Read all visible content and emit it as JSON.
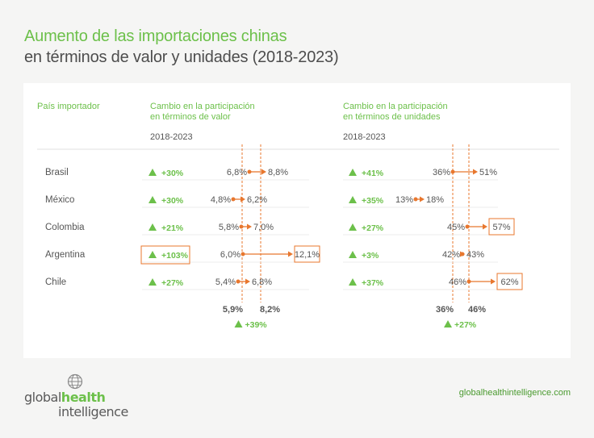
{
  "title_line1": "Aumento de las importaciones chinas",
  "title_line2": "en términos de valor y unidades (2018-2023)",
  "website": "globalhealthintelligence.com",
  "logo": {
    "part1": "global",
    "part2": "health",
    "part3": "intelligence",
    "icon": "globe-icon"
  },
  "colors": {
    "green": "#6cc04a",
    "orange": "#e8772e",
    "text": "#555555",
    "line": "#e0e0e0"
  },
  "chart_data": {
    "type": "table",
    "country_header": "País importador",
    "columns": [
      {
        "key": "value",
        "header_lines": [
          "Cambio en la participación",
          "en términos de valor"
        ],
        "period": "2018-2023",
        "ref_2018": 5.9,
        "ref_2023": 8.2,
        "ref_2018_label": "5,9%",
        "ref_2023_label": "8,2%",
        "total_change": "+39%"
      },
      {
        "key": "units",
        "header_lines": [
          "Cambio en la participación",
          "en términos de unidades"
        ],
        "period": "2018-2023",
        "ref_2018": 36,
        "ref_2023": 46,
        "ref_2018_label": "36%",
        "ref_2023_label": "46%",
        "total_change": "+27%"
      }
    ],
    "rows": [
      {
        "country": "Brasil",
        "value": {
          "change": "+30%",
          "v2018": 6.8,
          "v2023": 8.8,
          "l2018": "6,8%",
          "l2023": "8,8%",
          "highlight": false
        },
        "units": {
          "change": "+41%",
          "v2018": 36,
          "v2023": 51,
          "l2018": "36%",
          "l2023": "51%",
          "highlight": false
        }
      },
      {
        "country": "México",
        "value": {
          "change": "+30%",
          "v2018": 4.8,
          "v2023": 6.2,
          "l2018": "4,8%",
          "l2023": "6,2%",
          "highlight": false
        },
        "units": {
          "change": "+35%",
          "v2018": 13,
          "v2023": 18,
          "l2018": "13%",
          "l2023": "18%",
          "highlight": false
        }
      },
      {
        "country": "Colombia",
        "value": {
          "change": "+21%",
          "v2018": 5.8,
          "v2023": 7.0,
          "l2018": "5,8%",
          "l2023": "7,0%",
          "highlight": false
        },
        "units": {
          "change": "+27%",
          "v2018": 45,
          "v2023": 57,
          "l2018": "45%",
          "l2023": "57%",
          "highlight": true
        }
      },
      {
        "country": "Argentina",
        "value": {
          "change": "+103%",
          "v2018": 6.0,
          "v2023": 12.1,
          "l2018": "6,0%",
          "l2023": "12,1%",
          "highlight": true,
          "change_highlight": true
        },
        "units": {
          "change": "+3%",
          "v2018": 42,
          "v2023": 43,
          "l2018": "42%",
          "l2023": "43%",
          "highlight": false
        }
      },
      {
        "country": "Chile",
        "value": {
          "change": "+27%",
          "v2018": 5.4,
          "v2023": 6.8,
          "l2018": "5,4%",
          "l2023": "6,8%",
          "highlight": false
        },
        "units": {
          "change": "+37%",
          "v2018": 46,
          "v2023": 62,
          "l2018": "46%",
          "l2023": "62%",
          "highlight": true
        }
      }
    ]
  }
}
